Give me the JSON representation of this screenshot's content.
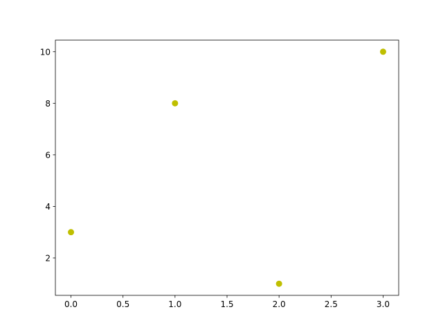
{
  "chart_data": {
    "type": "scatter",
    "title": "",
    "xlabel": "",
    "ylabel": "",
    "x": [
      0,
      1,
      2,
      3
    ],
    "y": [
      3,
      8,
      1,
      10
    ],
    "xlim": [
      -0.15,
      3.15
    ],
    "ylim": [
      0.55,
      10.45
    ],
    "xticks": [
      0.0,
      0.5,
      1.0,
      1.5,
      2.0,
      2.5,
      3.0
    ],
    "xtick_labels": [
      "0.0",
      "0.5",
      "1.0",
      "1.5",
      "2.0",
      "2.5",
      "3.0"
    ],
    "yticks": [
      2,
      4,
      6,
      8,
      10
    ],
    "ytick_labels": [
      "2",
      "4",
      "6",
      "8",
      "10"
    ],
    "grid": false,
    "marker_color": "#bfbf00"
  }
}
